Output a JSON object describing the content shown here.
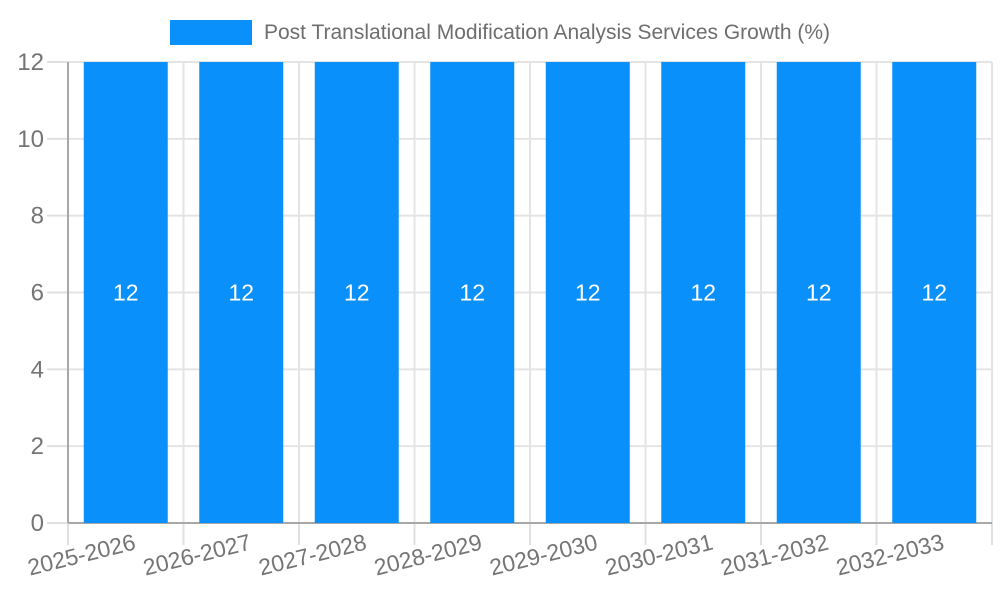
{
  "chart_data": {
    "type": "bar",
    "title": "Post Translational Modification Analysis Services Growth (%)",
    "categories": [
      "2025-2026",
      "2026-2027",
      "2027-2028",
      "2028-2029",
      "2029-2030",
      "2030-2031",
      "2031-2032",
      "2032-2033"
    ],
    "values": [
      12,
      12,
      12,
      12,
      12,
      12,
      12,
      12
    ],
    "bar_labels": [
      "12",
      "12",
      "12",
      "12",
      "12",
      "12",
      "12",
      "12"
    ],
    "y_ticks": [
      0,
      2,
      4,
      6,
      8,
      10,
      12
    ],
    "ylim": [
      0,
      12
    ],
    "xlabel": "",
    "ylabel": "",
    "grid": true,
    "legend_position": "top",
    "colors": {
      "bar": "#0990FA",
      "bar_label": "#ffffff",
      "tick_label": "#757575",
      "legend_text": "#6e6e6e",
      "gridline": "#e4e4e4",
      "tick_line": "#e0e0e0",
      "axis_line": "#a8a8a8"
    }
  }
}
